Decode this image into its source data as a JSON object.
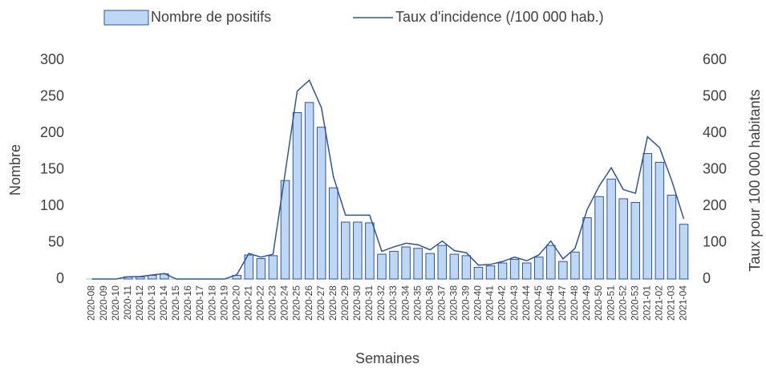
{
  "chart_data": {
    "type": "bar",
    "xlabel": "Semaines",
    "ylabel": "Nombre",
    "y2label": "Taux pour 100 000 habitants",
    "categories": [
      "2020-08",
      "2020-09",
      "2020-10",
      "2020-11",
      "2020-12",
      "2020-13",
      "2020-14",
      "2020-15",
      "2020-16",
      "2020-17",
      "2020-18",
      "2020-19",
      "2020-20",
      "2020-21",
      "2020-22",
      "2020-23",
      "2020-24",
      "2020-25",
      "2020-26",
      "2020-27",
      "2020-28",
      "2020-29",
      "2020-30",
      "2020-31",
      "2020-32",
      "2020-33",
      "2020-34",
      "2020-35",
      "2020-36",
      "2020-37",
      "2020-38",
      "2020-39",
      "2020-40",
      "2020-41",
      "2020-42",
      "2020-43",
      "2020-44",
      "2020-45",
      "2020-46",
      "2020-47",
      "2020-48",
      "2020-49",
      "2020-50",
      "2020-51",
      "2020-52",
      "2020-53",
      "2021-01",
      "2021-02",
      "2021-03",
      "2021-04"
    ],
    "series": [
      {
        "name": "Nombre de positifs",
        "type": "bar",
        "color": "#bdd7f5",
        "values": [
          0,
          0,
          0,
          3,
          3,
          5,
          7,
          0,
          0,
          0,
          0,
          0,
          5,
          33,
          28,
          32,
          135,
          228,
          242,
          208,
          125,
          78,
          78,
          77,
          34,
          38,
          44,
          42,
          35,
          46,
          34,
          32,
          16,
          18,
          22,
          27,
          22,
          30,
          46,
          24,
          37,
          84,
          113,
          137,
          110,
          105,
          172,
          160,
          115,
          75
        ]
      },
      {
        "name": "Taux d'incidence (/100 000 hab.)",
        "type": "line",
        "axis": "y2",
        "color": "#2f5597",
        "values": [
          0,
          0,
          0,
          6,
          7,
          11,
          15,
          0,
          0,
          0,
          0,
          0,
          12,
          70,
          60,
          68,
          290,
          515,
          545,
          470,
          280,
          175,
          175,
          175,
          76,
          88,
          98,
          94,
          80,
          104,
          78,
          72,
          38,
          40,
          48,
          60,
          50,
          66,
          104,
          55,
          84,
          190,
          255,
          305,
          245,
          235,
          390,
          360,
          270,
          165
        ]
      }
    ],
    "ylim": [
      0,
      300
    ],
    "yticks": [
      0,
      50,
      100,
      150,
      200,
      250,
      300
    ],
    "y2lim": [
      0,
      600
    ],
    "y2ticks": [
      0,
      100,
      200,
      300,
      400,
      500,
      600
    ]
  }
}
